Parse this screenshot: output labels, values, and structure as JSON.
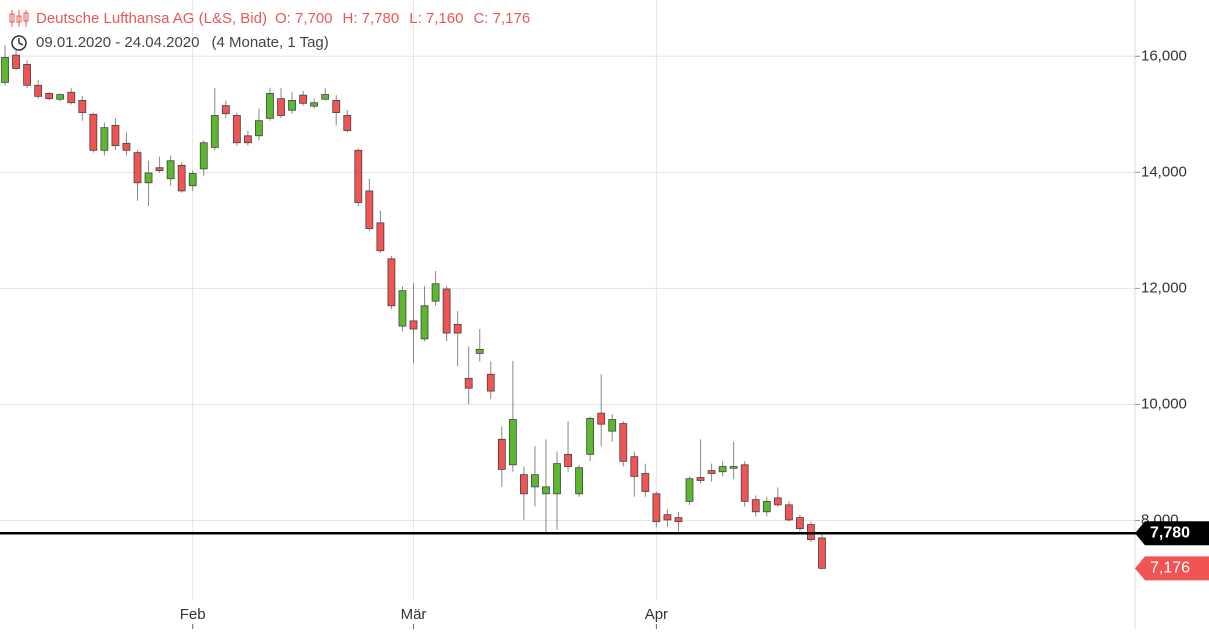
{
  "chart_data": {
    "type": "candlestick",
    "title": "Deutsche Lufthansa AG (L&S, Bid)",
    "ohlc_labels": [
      "O: 7,700",
      "H: 7,780",
      "L: 7,160",
      "C: 7,176"
    ],
    "subtitle": "09.01.2020 - 24.04.2020",
    "period": "(4 Monate, 1 Tag)",
    "categories": [
      null,
      null,
      null,
      null,
      null,
      null,
      null,
      null,
      null,
      null,
      null,
      null,
      null,
      null,
      null,
      null,
      null,
      "Feb",
      null,
      null,
      null,
      null,
      null,
      null,
      null,
      null,
      null,
      null,
      null,
      null,
      null,
      null,
      null,
      null,
      null,
      null,
      null,
      "Mär",
      null,
      null,
      null,
      null,
      null,
      null,
      null,
      null,
      null,
      null,
      null,
      null,
      null,
      null,
      null,
      null,
      null,
      null,
      null,
      null,
      null,
      "Apr",
      null,
      null,
      null,
      null,
      null,
      null,
      null,
      null,
      null,
      null,
      null,
      null,
      null,
      null,
      null
    ],
    "open": [
      15.55,
      16.02,
      15.86,
      15.5,
      15.36,
      15.26,
      15.38,
      15.24,
      15.0,
      14.38,
      14.81,
      14.5,
      14.34,
      13.82,
      14.08,
      13.89,
      14.12,
      13.77,
      14.06,
      14.43,
      15.15,
      14.98,
      14.63,
      14.63,
      14.93,
      15.27,
      15.07,
      15.33,
      15.14,
      15.26,
      15.24,
      14.98,
      14.38,
      13.68,
      13.13,
      12.51,
      11.35,
      11.44,
      11.13,
      11.78,
      11.99,
      11.38,
      10.45,
      10.88,
      10.52,
      9.4,
      8.96,
      8.79,
      8.58,
      8.46,
      8.46,
      9.14,
      8.46,
      9.14,
      9.85,
      9.54,
      9.67,
      9.1,
      8.81,
      8.46,
      8.1,
      8.05,
      8.33,
      8.74,
      8.86,
      8.84,
      8.9,
      8.96,
      8.36,
      8.15,
      8.39,
      8.27,
      8.05,
      7.93,
      7.7
    ],
    "high": [
      16.19,
      16.1,
      15.93,
      15.59,
      15.38,
      15.36,
      15.45,
      15.31,
      15.03,
      14.86,
      14.93,
      14.69,
      14.38,
      14.2,
      14.27,
      14.29,
      14.17,
      14.03,
      14.55,
      15.45,
      15.24,
      15.03,
      14.72,
      15.1,
      15.45,
      15.45,
      15.38,
      15.41,
      15.27,
      15.45,
      15.33,
      15.07,
      14.41,
      13.89,
      13.34,
      12.56,
      12.04,
      12.09,
      12.04,
      12.3,
      12.04,
      11.61,
      11.0,
      11.3,
      10.74,
      9.62,
      10.75,
      8.93,
      9.28,
      9.4,
      9.19,
      9.71,
      8.96,
      9.79,
      10.52,
      9.83,
      9.71,
      9.19,
      8.98,
      8.5,
      8.19,
      8.15,
      8.76,
      9.4,
      8.98,
      9.02,
      9.36,
      9.02,
      8.43,
      8.41,
      8.57,
      8.33,
      8.1,
      7.98,
      7.78
    ],
    "low": [
      15.5,
      15.76,
      15.45,
      15.27,
      15.24,
      15.22,
      15.17,
      14.89,
      14.34,
      14.29,
      14.38,
      14.29,
      13.51,
      13.42,
      13.99,
      13.77,
      13.65,
      13.68,
      13.94,
      14.38,
      14.93,
      14.46,
      14.46,
      14.55,
      14.89,
      14.93,
      15.01,
      15.15,
      15.1,
      15.24,
      14.81,
      14.69,
      13.42,
      12.99,
      12.61,
      11.64,
      11.26,
      10.71,
      11.09,
      11.7,
      11.09,
      10.66,
      10.0,
      10.74,
      10.09,
      8.58,
      8.84,
      8.01,
      8.24,
      7.77,
      7.84,
      8.84,
      8.41,
      9.02,
      9.28,
      9.36,
      8.93,
      8.41,
      8.41,
      7.89,
      7.89,
      7.81,
      8.27,
      8.64,
      8.67,
      8.76,
      8.71,
      8.24,
      8.07,
      8.07,
      8.24,
      7.98,
      7.81,
      7.63,
      7.16
    ],
    "close": [
      15.98,
      15.79,
      15.5,
      15.31,
      15.27,
      15.34,
      15.2,
      15.03,
      14.38,
      14.77,
      14.46,
      14.38,
      13.82,
      13.99,
      14.03,
      14.2,
      13.68,
      13.98,
      14.51,
      14.98,
      15.01,
      14.51,
      14.51,
      14.89,
      15.36,
      14.98,
      15.24,
      15.19,
      15.2,
      15.34,
      15.03,
      14.72,
      13.48,
      13.03,
      12.65,
      11.7,
      11.96,
      11.3,
      11.7,
      12.08,
      11.23,
      11.23,
      10.28,
      10.95,
      10.23,
      8.88,
      9.74,
      8.46,
      8.79,
      8.58,
      8.98,
      8.93,
      8.91,
      9.76,
      9.66,
      9.74,
      9.02,
      8.76,
      8.5,
      7.98,
      8.01,
      7.98,
      8.72,
      8.69,
      8.81,
      8.93,
      8.93,
      8.33,
      8.15,
      8.33,
      8.27,
      8.01,
      7.86,
      7.67,
      7.176
    ],
    "up_color": "#5cb82e",
    "down_color": "#f05454",
    "ylim": [
      6.63,
      16.97
    ],
    "yticks": [
      {
        "value": 8,
        "label": "8,000"
      },
      {
        "value": 10,
        "label": "10,000"
      },
      {
        "value": 12,
        "label": "12,000"
      },
      {
        "value": 14,
        "label": "14,000"
      },
      {
        "value": 16,
        "label": "16,000"
      }
    ],
    "grid": true,
    "price_line": {
      "value": 7.78,
      "label": "7,780"
    },
    "last_price": {
      "value": 7.176,
      "label": "7,176"
    }
  }
}
